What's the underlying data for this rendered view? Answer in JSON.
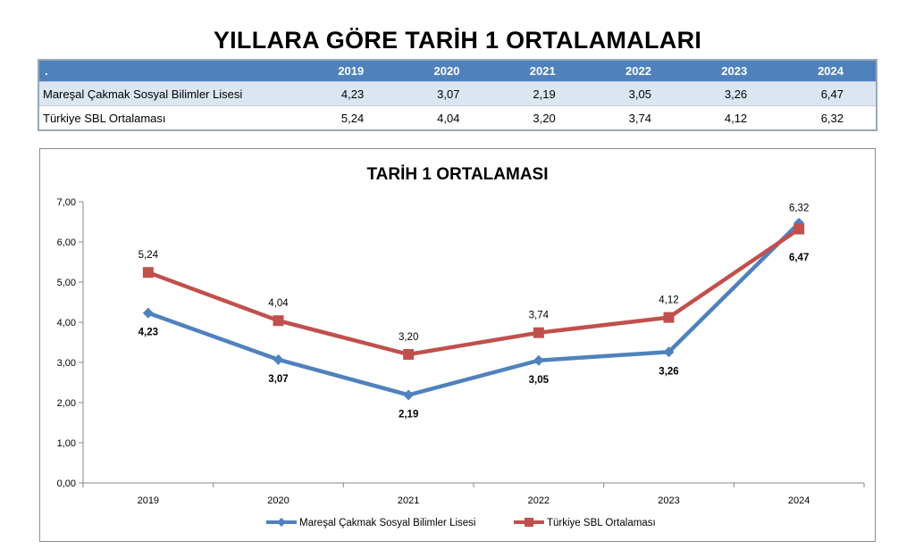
{
  "page": {
    "title": "YILLARA GÖRE TARİH 1 ORTALAMALARI"
  },
  "table": {
    "corner": ".",
    "headers": [
      "2019",
      "2020",
      "2021",
      "2022",
      "2023",
      "2024"
    ],
    "rows": [
      {
        "label": "Mareşal Çakmak Sosyal Bilimler Lisesi",
        "values": [
          "4,23",
          "3,07",
          "2,19",
          "3,05",
          "3,26",
          "6,47"
        ]
      },
      {
        "label": "Türkiye SBL Ortalaması",
        "values": [
          "5,24",
          "4,04",
          "3,20",
          "3,74",
          "4,12",
          "6,32"
        ]
      }
    ]
  },
  "chart_data": {
    "type": "line",
    "title": "TARİH 1 ORTALAMASI",
    "categories": [
      "2019",
      "2020",
      "2021",
      "2022",
      "2023",
      "2024"
    ],
    "ylim": [
      0,
      7
    ],
    "yticks": [
      "0,00",
      "1,00",
      "2,00",
      "3,00",
      "4,00",
      "5,00",
      "6,00",
      "7,00"
    ],
    "grid": false,
    "legend_position": "bottom",
    "series": [
      {
        "name": "Mareşal Çakmak Sosyal Bilimler Lisesi",
        "values": [
          4.23,
          3.07,
          2.19,
          3.05,
          3.26,
          6.47
        ],
        "labels": [
          "4,23",
          "3,07",
          "2,19",
          "3,05",
          "3,26",
          "6,47"
        ],
        "color": "#4f81bd",
        "marker": "diamond",
        "label_style": "bold-below"
      },
      {
        "name": "Türkiye SBL Ortalaması",
        "values": [
          5.24,
          4.04,
          3.2,
          3.74,
          4.12,
          6.32
        ],
        "labels": [
          "5,24",
          "4,04",
          "3,20",
          "3,74",
          "4,12",
          "6,32"
        ],
        "color": "#c0504d",
        "marker": "square",
        "label_style": "normal-above"
      }
    ]
  }
}
